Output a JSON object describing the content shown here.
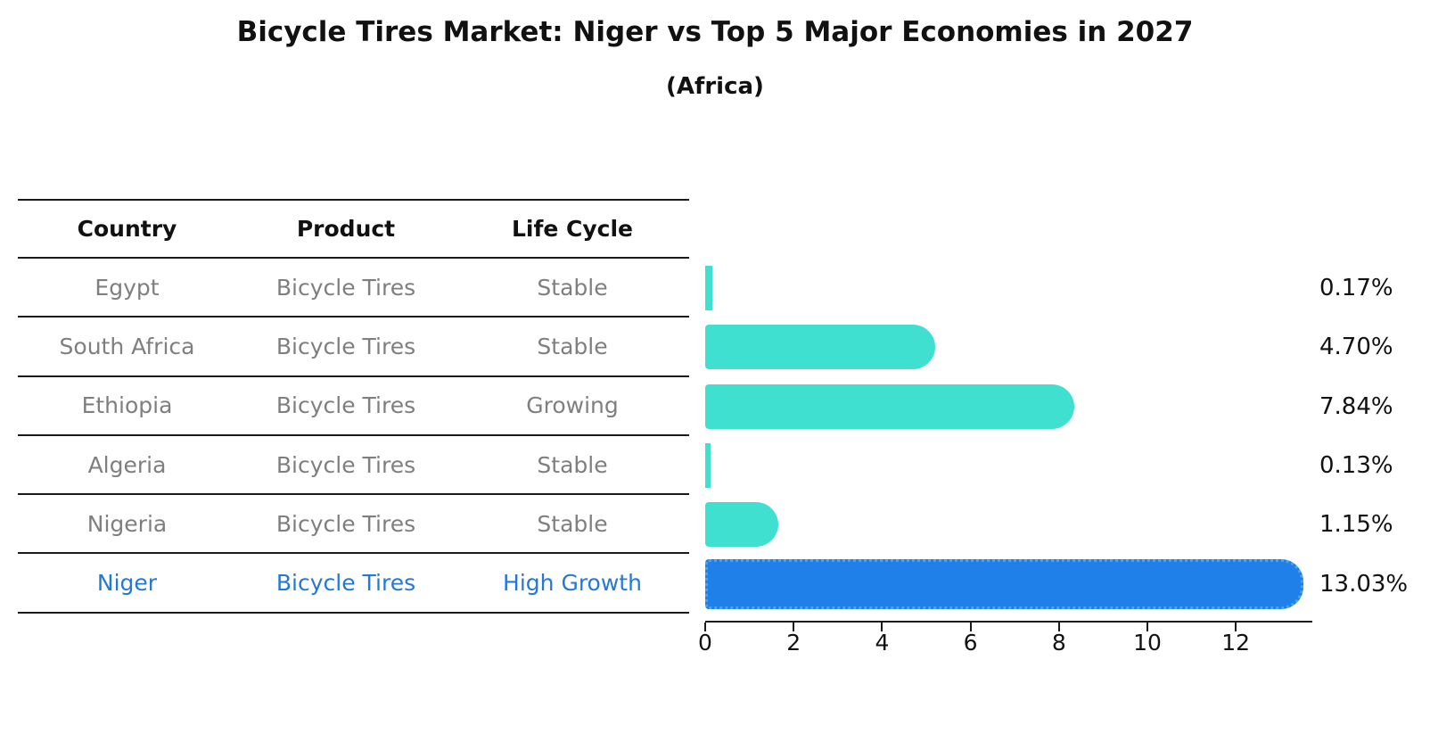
{
  "title": "Bicycle Tires Market: Niger vs Top 5 Major Economies in 2027",
  "subtitle": "(Africa)",
  "table": {
    "headers": [
      "Country",
      "Product",
      "Life Cycle"
    ],
    "rows": [
      {
        "country": "Egypt",
        "product": "Bicycle Tires",
        "life_cycle": "Stable",
        "highlight": false
      },
      {
        "country": "South Africa",
        "product": "Bicycle Tires",
        "life_cycle": "Stable",
        "highlight": false
      },
      {
        "country": "Ethiopia",
        "product": "Bicycle Tires",
        "life_cycle": "Growing",
        "highlight": false
      },
      {
        "country": "Algeria",
        "product": "Bicycle Tires",
        "life_cycle": "Stable",
        "highlight": false
      },
      {
        "country": "Nigeria",
        "product": "Bicycle Tires",
        "life_cycle": "Stable",
        "highlight": false
      },
      {
        "country": "Niger",
        "product": "Bicycle Tires",
        "life_cycle": "High Growth",
        "highlight": true
      }
    ]
  },
  "chart_data": {
    "type": "bar",
    "orientation": "horizontal",
    "title": "Bicycle Tires Market: Niger vs Top 5 Major Economies in 2027",
    "subtitle": "(Africa)",
    "categories": [
      "Egypt",
      "South Africa",
      "Ethiopia",
      "Algeria",
      "Nigeria",
      "Niger"
    ],
    "values": [
      0.17,
      4.7,
      7.84,
      0.13,
      1.15,
      13.03
    ],
    "value_labels": [
      "0.17%",
      "4.70%",
      "7.84%",
      "0.13%",
      "1.15%",
      "13.03%"
    ],
    "highlight_index": 5,
    "xlabel": "",
    "ylabel": "",
    "xlim": [
      0,
      13.69
    ],
    "xticks": [
      0,
      2,
      4,
      6,
      8,
      10,
      12
    ],
    "grid": false,
    "legend": false,
    "bar_color": "#40E0D0",
    "highlight_bar_color": "#1E80E8",
    "highlight_text_color": "#2478D6",
    "text_color_muted": "#7f7f7f"
  }
}
